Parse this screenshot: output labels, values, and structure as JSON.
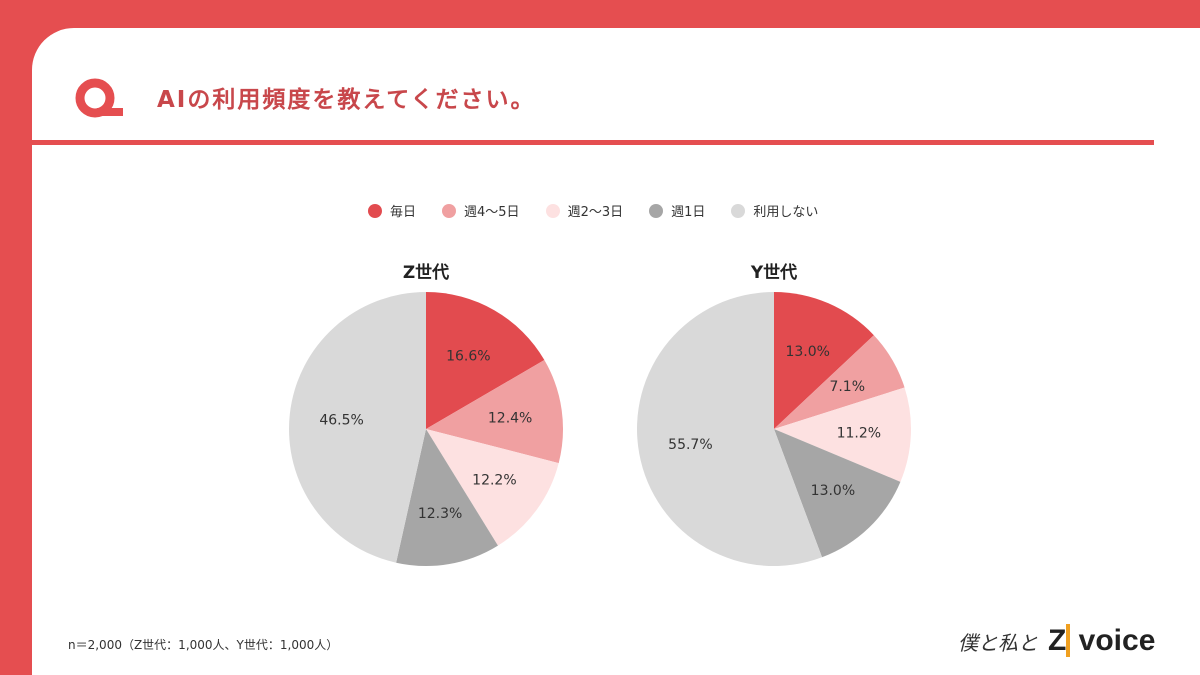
{
  "header": {
    "title": "AIの利用頻度を教えてください。"
  },
  "colors": {
    "accent": "#e54e50"
  },
  "chart_data": [
    {
      "type": "pie",
      "title": "Z世代",
      "categories": [
        "毎日",
        "週4〜5日",
        "週2〜3日",
        "週1日",
        "利用しない"
      ],
      "values": [
        16.6,
        12.4,
        12.2,
        12.3,
        46.5
      ],
      "labels": [
        "16.6%",
        "12.4%",
        "12.2%",
        "12.3%",
        "46.5%"
      ],
      "colors": [
        "#e24b4f",
        "#f0a0a1",
        "#fde1e1",
        "#a6a6a6",
        "#d9d9d9"
      ],
      "legend": "top"
    },
    {
      "type": "pie",
      "title": "Y世代",
      "categories": [
        "毎日",
        "週4〜5日",
        "週2〜3日",
        "週1日",
        "利用しない"
      ],
      "values": [
        13.0,
        7.1,
        11.2,
        13.0,
        55.7
      ],
      "labels": [
        "13.0%",
        "7.1%",
        "11.2%",
        "13.0%",
        "55.7%"
      ],
      "colors": [
        "#e24b4f",
        "#f0a0a1",
        "#fde1e1",
        "#a6a6a6",
        "#d9d9d9"
      ],
      "legend": "top"
    }
  ],
  "legend": [
    "毎日",
    "週4〜5日",
    "週2〜3日",
    "週1日",
    "利用しない"
  ],
  "footer": {
    "note": "n＝2,000（Z世代：1,000人、Y世代：1,000人）",
    "logo_hand": "僕と私と",
    "logo_z": "Z",
    "logo_voice": "voice"
  }
}
